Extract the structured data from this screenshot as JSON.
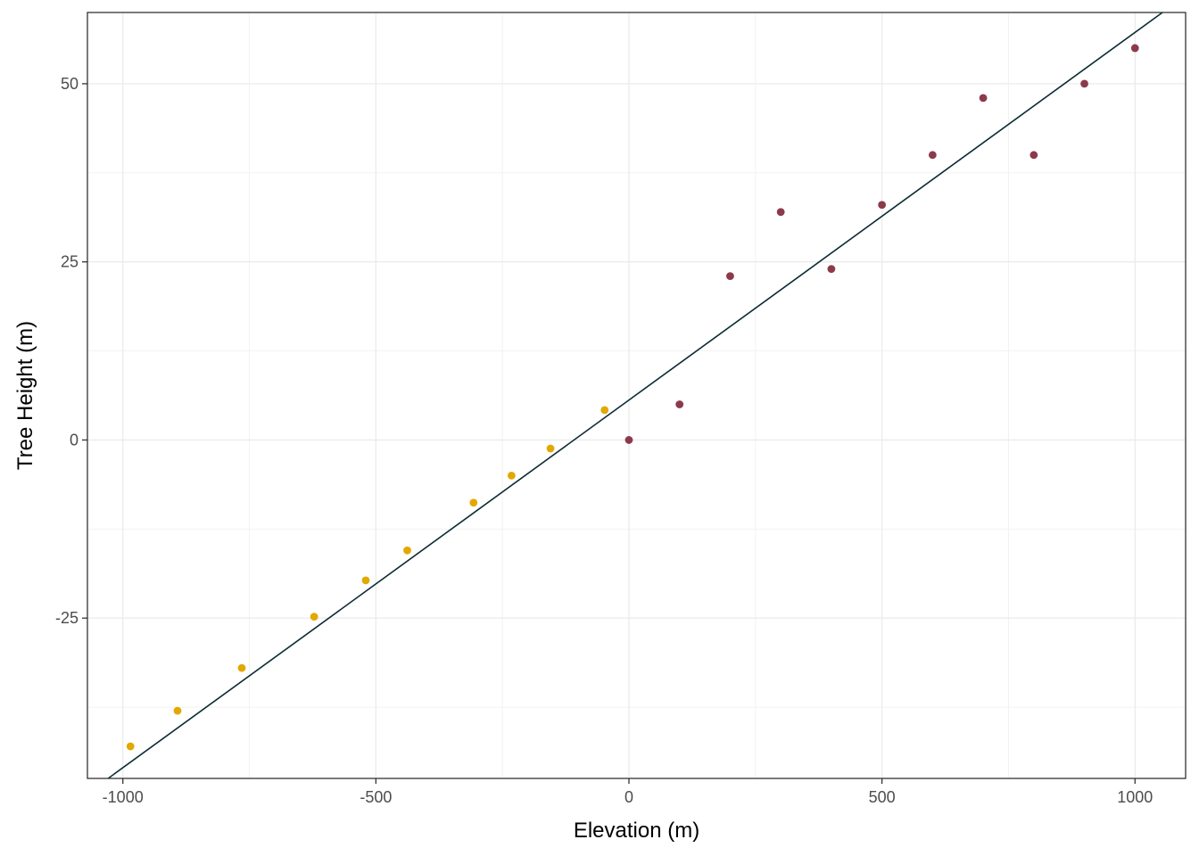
{
  "chart_data": {
    "type": "scatter",
    "xlabel": "Elevation (m)",
    "ylabel": "Tree Height (m)",
    "xlim": [
      -1070,
      1100
    ],
    "ylim": [
      -47.5,
      60
    ],
    "x_ticks": [
      -1000,
      -500,
      0,
      500,
      1000
    ],
    "x_tick_labels": [
      "-1000",
      "-500",
      "0",
      "500",
      "1000"
    ],
    "y_ticks": [
      -25,
      0,
      25,
      50
    ],
    "y_tick_labels": [
      "-25",
      "0",
      "25",
      "50"
    ],
    "grid": true,
    "series": [
      {
        "color": "#E2A800",
        "points": [
          {
            "x": -985,
            "y": -43
          },
          {
            "x": -892,
            "y": -38
          },
          {
            "x": -765,
            "y": -32
          },
          {
            "x": -622,
            "y": -24.8
          },
          {
            "x": -520,
            "y": -19.7
          },
          {
            "x": -438,
            "y": -15.5
          },
          {
            "x": -307,
            "y": -8.8
          },
          {
            "x": -232,
            "y": -5
          },
          {
            "x": -155,
            "y": -1.2
          },
          {
            "x": -48,
            "y": 4.2
          }
        ]
      },
      {
        "color": "#8C3A4A",
        "points": [
          {
            "x": 0,
            "y": 0
          },
          {
            "x": 100,
            "y": 5
          },
          {
            "x": 200,
            "y": 23
          },
          {
            "x": 300,
            "y": 32
          },
          {
            "x": 400,
            "y": 24
          },
          {
            "x": 500,
            "y": 33
          },
          {
            "x": 600,
            "y": 40
          },
          {
            "x": 700,
            "y": 48
          },
          {
            "x": 800,
            "y": 40
          },
          {
            "x": 900,
            "y": 50
          },
          {
            "x": 1000,
            "y": 55
          }
        ]
      }
    ],
    "fit_line": {
      "color": "#0B2B33",
      "slope": 0.0516,
      "intercept": 5.6
    }
  }
}
